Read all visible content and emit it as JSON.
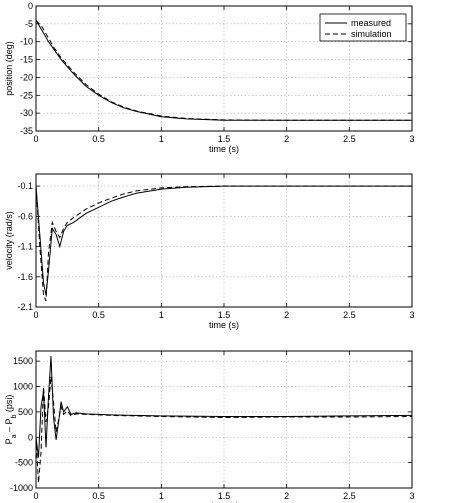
{
  "chart_data": [
    {
      "type": "line",
      "xlabel": "time (s)",
      "ylabel": "position (deg)",
      "xlim": [
        0,
        3
      ],
      "ylim": [
        -35,
        0
      ],
      "xticks": [
        "0",
        "0.5",
        "1",
        "1.5",
        "2",
        "2.5",
        "3"
      ],
      "yticks": [
        "0",
        "-5",
        "-10",
        "-15",
        "-20",
        "-25",
        "-30",
        "-35"
      ],
      "grid": true,
      "legend": "top-right",
      "series": [
        {
          "name": "measured",
          "style": "solid",
          "x": [
            0,
            0.05,
            0.1,
            0.15,
            0.2,
            0.3,
            0.4,
            0.5,
            0.6,
            0.7,
            0.8,
            1.0,
            1.2,
            1.5,
            2.0,
            2.5,
            3.0
          ],
          "y": [
            -4,
            -7,
            -10,
            -12.5,
            -15,
            -19,
            -22.5,
            -25,
            -27,
            -28.5,
            -29.5,
            -31,
            -31.6,
            -32,
            -32,
            -32,
            -32
          ]
        },
        {
          "name": "simulation",
          "style": "dashed",
          "x": [
            0,
            0.05,
            0.1,
            0.15,
            0.2,
            0.3,
            0.4,
            0.5,
            0.6,
            0.7,
            0.8,
            1.0,
            1.2,
            1.5,
            2.0,
            2.5,
            3.0
          ],
          "y": [
            -4,
            -6,
            -9,
            -12,
            -14.5,
            -18.5,
            -22,
            -24.7,
            -26.8,
            -28.3,
            -29.4,
            -30.8,
            -31.5,
            -31.9,
            -32,
            -32,
            -32
          ]
        }
      ]
    },
    {
      "type": "line",
      "xlabel": "time (s)",
      "ylabel": "velocity (rad/s)",
      "xlim": [
        0,
        3
      ],
      "ylim": [
        -2.1,
        0.1
      ],
      "xticks": [
        "0",
        "0.5",
        "1",
        "1.5",
        "2",
        "2.5",
        "3"
      ],
      "yticks": [
        "-0.1",
        "-0.6",
        "-1.1",
        "-1.6",
        "-2.1"
      ],
      "grid": true,
      "series": [
        {
          "name": "measured",
          "style": "solid",
          "x": [
            0,
            0.03,
            0.06,
            0.08,
            0.1,
            0.13,
            0.16,
            0.19,
            0.22,
            0.25,
            0.3,
            0.4,
            0.5,
            0.6,
            0.7,
            0.8,
            1.0,
            1.2,
            1.5,
            2.0,
            2.5,
            3.0
          ],
          "y": [
            -0.1,
            -0.9,
            -1.7,
            -1.9,
            -1.5,
            -0.8,
            -0.9,
            -1.1,
            -0.85,
            -0.75,
            -0.7,
            -0.55,
            -0.45,
            -0.35,
            -0.28,
            -0.22,
            -0.15,
            -0.12,
            -0.1,
            -0.1,
            -0.1,
            -0.1
          ]
        },
        {
          "name": "simulation",
          "style": "dashed",
          "x": [
            0,
            0.03,
            0.06,
            0.08,
            0.1,
            0.13,
            0.16,
            0.19,
            0.22,
            0.25,
            0.3,
            0.4,
            0.5,
            0.6,
            0.7,
            0.8,
            1.0,
            1.2,
            1.5,
            2.0,
            2.5,
            3.0
          ],
          "y": [
            -0.1,
            -1.1,
            -1.9,
            -2.0,
            -1.2,
            -0.7,
            -0.85,
            -0.95,
            -0.8,
            -0.7,
            -0.62,
            -0.48,
            -0.38,
            -0.3,
            -0.23,
            -0.18,
            -0.13,
            -0.11,
            -0.1,
            -0.1,
            -0.1,
            -0.1
          ]
        }
      ]
    },
    {
      "type": "line",
      "xlabel": "time (s)",
      "ylabel": "P_a - P_b (psi)",
      "xlim": [
        0,
        3
      ],
      "ylim": [
        -1000,
        1700
      ],
      "xticks": [
        "0",
        "0.5",
        "1",
        "1.5",
        "2",
        "2.5",
        "3"
      ],
      "yticks": [
        "1500",
        "1000",
        "500",
        "0",
        "-500",
        "-1000"
      ],
      "grid": true,
      "series": [
        {
          "name": "measured",
          "style": "solid",
          "x": [
            0,
            0.02,
            0.04,
            0.06,
            0.08,
            0.1,
            0.12,
            0.14,
            0.16,
            0.18,
            0.2,
            0.22,
            0.25,
            0.28,
            0.32,
            0.4,
            0.6,
            1.0,
            1.5,
            2.0,
            2.5,
            3.0
          ],
          "y": [
            0,
            -400,
            600,
            900,
            -200,
            800,
            1600,
            400,
            -50,
            300,
            700,
            500,
            600,
            450,
            480,
            460,
            440,
            420,
            410,
            410,
            420,
            430
          ]
        },
        {
          "name": "simulation",
          "style": "dashed",
          "x": [
            0,
            0.02,
            0.04,
            0.06,
            0.08,
            0.1,
            0.12,
            0.14,
            0.16,
            0.18,
            0.2,
            0.22,
            0.25,
            0.28,
            0.32,
            0.4,
            0.6,
            1.0,
            1.5,
            2.0,
            2.5,
            3.0
          ],
          "y": [
            0,
            -900,
            -300,
            1000,
            300,
            600,
            1200,
            700,
            100,
            350,
            600,
            450,
            520,
            420,
            460,
            450,
            430,
            410,
            390,
            400,
            400,
            410
          ]
        }
      ]
    }
  ]
}
